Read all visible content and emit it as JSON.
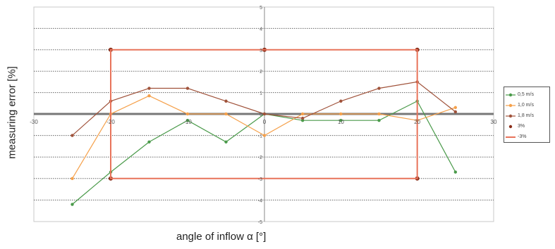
{
  "chart_data": {
    "type": "line",
    "xlabel": "angle of inflow α [°]",
    "ylabel": "measuring error [%]",
    "xlim": [
      -30,
      30
    ],
    "ylim": [
      -5,
      5
    ],
    "x_ticks": [
      "-30",
      "-20",
      "-10",
      "0",
      "10",
      "20",
      "30"
    ],
    "y_ticks": [
      "-5",
      "-4",
      "-3",
      "-2",
      "-1",
      "0",
      "1",
      "2",
      "3",
      "4",
      "5"
    ],
    "grid": "horizontal dotted",
    "legend_position": "right",
    "series": [
      {
        "name": "0,5 m/s",
        "color": "#4a9a4a",
        "style": "line-dot",
        "x": [
          -25,
          -20,
          -15,
          -10,
          -5,
          0,
          5,
          10,
          15,
          20,
          25
        ],
        "y": [
          -4.2,
          -2.7,
          -1.3,
          -0.3,
          -1.3,
          0,
          -0.3,
          -0.3,
          -0.3,
          0.6,
          -2.7
        ]
      },
      {
        "name": "1,0 m/s",
        "color": "#f5a04a",
        "style": "line-dot",
        "x": [
          -25,
          -20,
          -15,
          -10,
          -5,
          0,
          5,
          10,
          15,
          20,
          25
        ],
        "y": [
          -3.0,
          0,
          0.85,
          0,
          0,
          -1.0,
          0,
          0,
          0,
          -0.3,
          0.3
        ]
      },
      {
        "name": "1,8 m/s",
        "color": "#a0523a",
        "style": "line-dot",
        "x": [
          -25,
          -20,
          -15,
          -10,
          -5,
          0,
          5,
          10,
          15,
          20,
          25
        ],
        "y": [
          -1.0,
          0.6,
          1.2,
          1.2,
          0.6,
          0,
          -0.2,
          0.6,
          1.2,
          1.5,
          0.1
        ]
      },
      {
        "name": "3%",
        "color": "#8b2e1a",
        "style": "dot",
        "x": [
          -20,
          0,
          20,
          -20,
          20
        ],
        "y": [
          3,
          3,
          3,
          -3,
          -3
        ]
      },
      {
        "name": "-3%",
        "color": "#e8735a",
        "style": "line",
        "x": [
          -20,
          -20,
          20,
          20,
          -20,
          -20
        ],
        "y": [
          3,
          -3,
          -3,
          3,
          3,
          -3
        ]
      }
    ]
  }
}
